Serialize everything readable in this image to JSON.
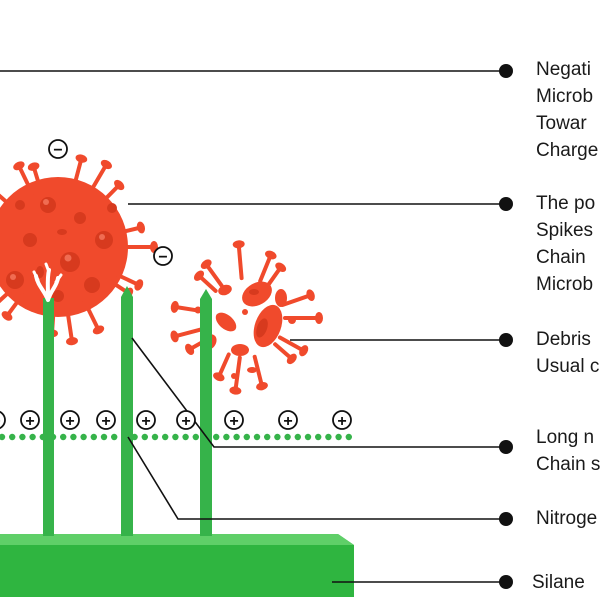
{
  "labels": {
    "negative_charge": [
      "Negati",
      "Microb",
      "Towar",
      "Charge"
    ],
    "spikes": [
      "The po",
      "Spikes",
      "Chain",
      "Microb"
    ],
    "debris": [
      "Debris",
      "Usual c"
    ],
    "long_chain": [
      "Long n",
      "Chain s"
    ],
    "nitrogen": [
      "Nitroge"
    ],
    "silane": [
      "Silane"
    ]
  },
  "charges": {
    "negative_symbol": "−",
    "positive_symbol": "+"
  },
  "colors": {
    "virus": "#f04a2c",
    "virus_dark": "#d73a1e",
    "spike": "#36b34a",
    "base_top": "#5fcf68",
    "base": "#2fb540",
    "leader": "#111111",
    "text": "#1a1a1a"
  }
}
